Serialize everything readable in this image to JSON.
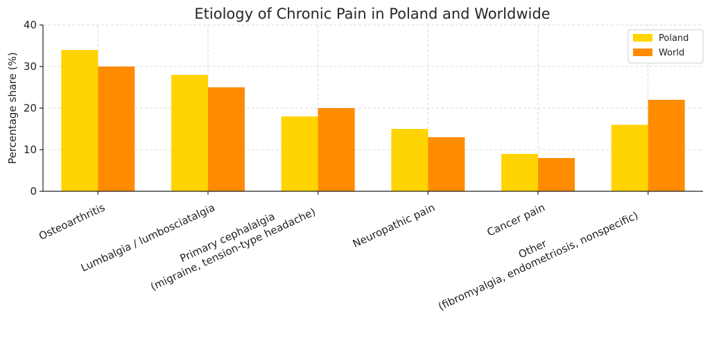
{
  "chart_data": {
    "type": "bar",
    "title": "Etiology of Chronic Pain in Poland and Worldwide",
    "ylabel": "Percentage share (%)",
    "xlabel": "",
    "ylim": [
      0,
      40
    ],
    "yticks": [
      0,
      10,
      20,
      30,
      40
    ],
    "grid": true,
    "legend_position": "top-right",
    "categories": [
      [
        "Osteoarthritis"
      ],
      [
        "Lumbalgia / lumbosciatalgia"
      ],
      [
        "Primary cephalalgia",
        "(migraine, tension-type headache)"
      ],
      [
        "Neuropathic pain"
      ],
      [
        "Cancer pain"
      ],
      [
        "Other",
        "(fibromyalgia, endometriosis, nonspecific)"
      ]
    ],
    "series": [
      {
        "name": "Poland",
        "color": "#FFD400",
        "values": [
          34,
          28,
          18,
          15,
          9,
          16
        ]
      },
      {
        "name": "World",
        "color": "#FF8C00",
        "values": [
          30,
          25,
          20,
          13,
          8,
          22
        ]
      }
    ]
  }
}
